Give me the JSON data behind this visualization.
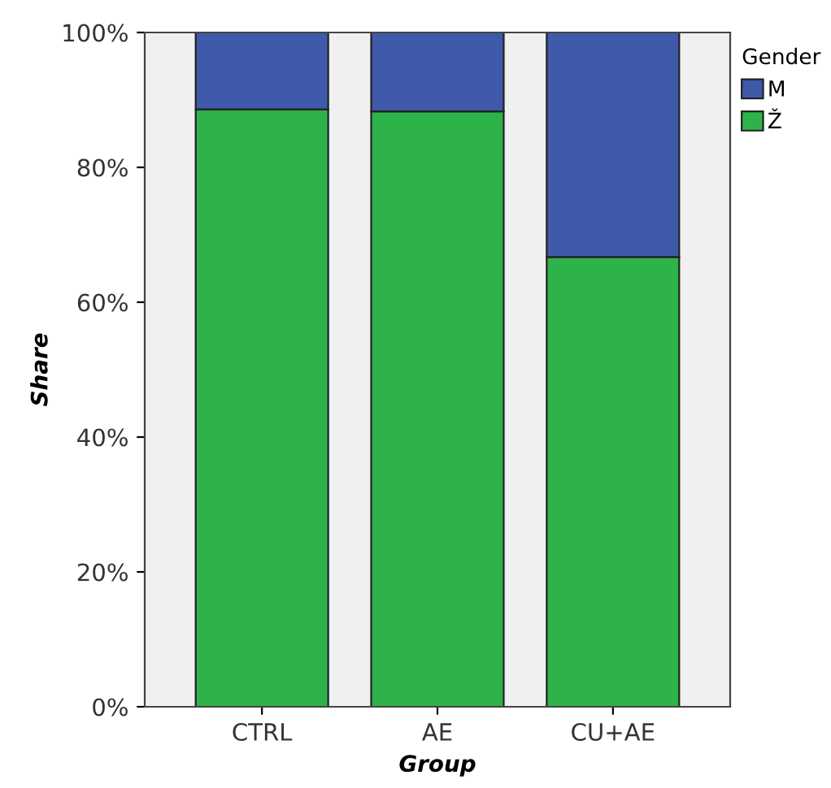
{
  "chart_data": {
    "type": "bar",
    "stacked": true,
    "xlabel": "Group",
    "ylabel": "Share",
    "legend_title": "Gender",
    "legend": "right",
    "categories": [
      "CTRL",
      "AE",
      "CU+AE"
    ],
    "series": [
      {
        "name": "Ž",
        "color": "#2db34a",
        "values": [
          88.6,
          88.3,
          66.7
        ]
      },
      {
        "name": "M",
        "color": "#3f59ab",
        "values": [
          11.4,
          11.7,
          33.3
        ]
      }
    ],
    "ylim": [
      0,
      100
    ],
    "yticks": [
      {
        "value": 0,
        "label": "0%"
      },
      {
        "value": 20,
        "label": "20%"
      },
      {
        "value": 40,
        "label": "40%"
      },
      {
        "value": 60,
        "label": "60%"
      },
      {
        "value": 80,
        "label": "80%"
      },
      {
        "value": 100,
        "label": "100%"
      }
    ],
    "grid": false
  }
}
